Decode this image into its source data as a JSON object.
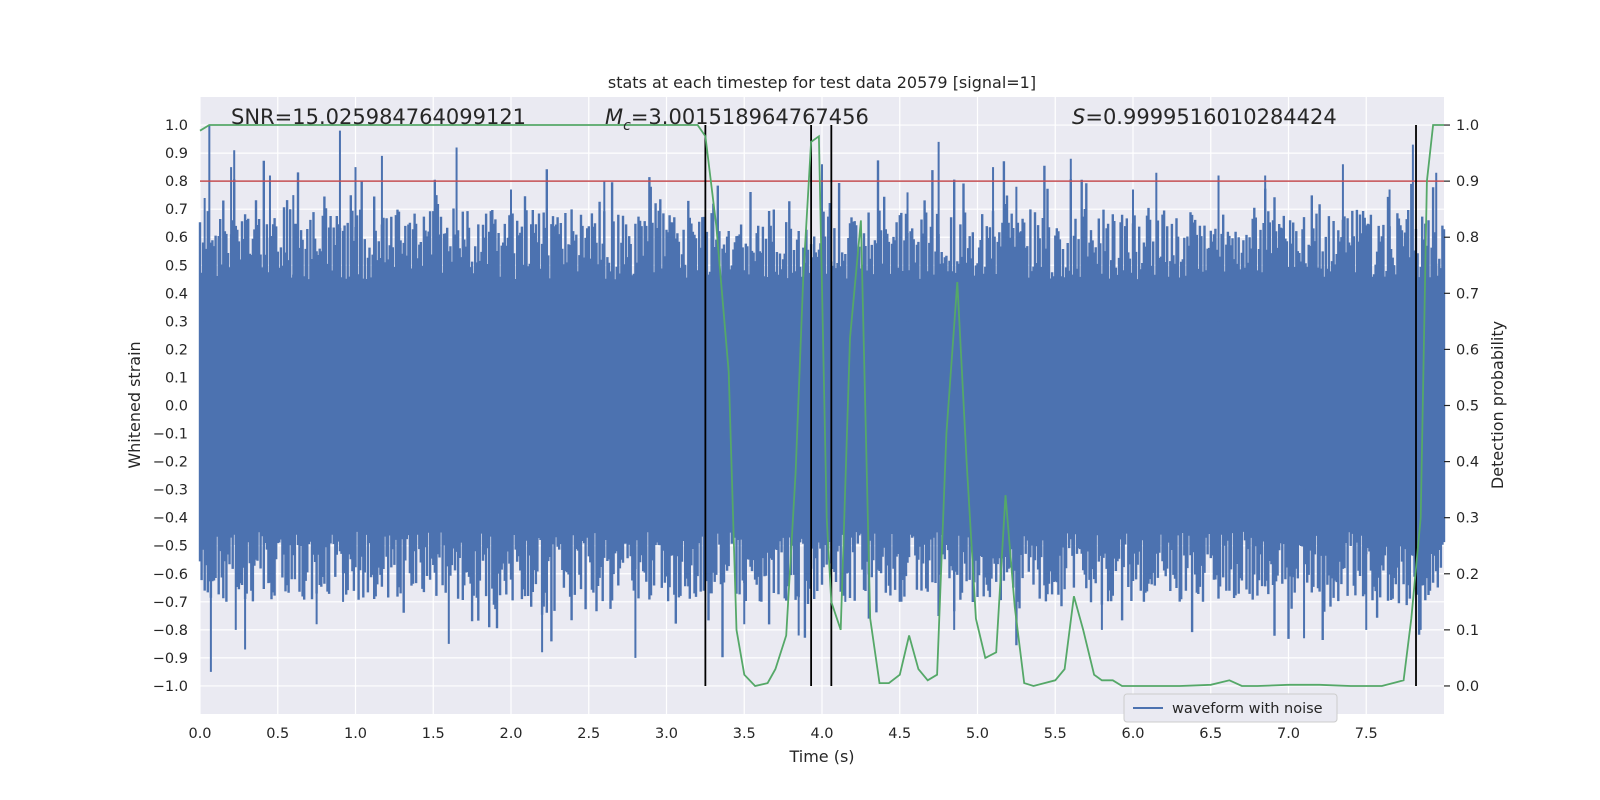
{
  "chart_data": {
    "type": "line",
    "title": "stats at each timestep for test data 20579 [signal=1]",
    "xlabel": "Time (s)",
    "ylabel": "Whitened strain",
    "y2label": "Detection probability",
    "xlim": [
      0.0,
      8.0
    ],
    "ylim": [
      -1.1,
      1.1
    ],
    "y2lim": [
      -0.05,
      1.05
    ],
    "x_ticks": [
      0.0,
      0.5,
      1.0,
      1.5,
      2.0,
      2.5,
      3.0,
      3.5,
      4.0,
      4.5,
      5.0,
      5.5,
      6.0,
      6.5,
      7.0,
      7.5
    ],
    "x_tick_labels": [
      "0.0",
      "0.5",
      "1.0",
      "1.5",
      "2.0",
      "2.5",
      "3.0",
      "3.5",
      "4.0",
      "4.5",
      "5.0",
      "5.5",
      "6.0",
      "6.5",
      "7.0",
      "7.5"
    ],
    "y_ticks": [
      1.0,
      0.9,
      0.8,
      0.7,
      0.6,
      0.5,
      0.4,
      0.3,
      0.2,
      0.1,
      0.0,
      -0.1,
      -0.2,
      -0.3,
      -0.4,
      -0.5,
      -0.6,
      -0.7,
      -0.8,
      -0.9,
      -1.0
    ],
    "y_tick_labels": [
      "1.0",
      "0.9",
      "0.8",
      "0.7",
      "0.6",
      "0.5",
      "0.4",
      "0.3",
      "0.2",
      "0.1",
      "0.0",
      "−0.1",
      "−0.2",
      "−0.3",
      "−0.4",
      "−0.5",
      "−0.6",
      "−0.7",
      "−0.8",
      "−0.9",
      "−1.0"
    ],
    "y2_ticks": [
      1.0,
      0.9,
      0.8,
      0.7,
      0.6,
      0.5,
      0.4,
      0.3,
      0.2,
      0.1,
      0.0
    ],
    "y2_tick_labels": [
      "1.0",
      "0.9",
      "0.8",
      "0.7",
      "0.6",
      "0.5",
      "0.4",
      "0.3",
      "0.2",
      "0.1",
      "0.0"
    ],
    "grid": true,
    "legend": {
      "label": "waveform with noise",
      "placement": "lower-right"
    },
    "annotations": {
      "snr": "SNR=15.025984764099121",
      "mc_symbol": "M",
      "mc_subscript": "c",
      "mc_value": "=3.001518964767456",
      "s_symbol": "S",
      "s_value": "=0.9999516010284424"
    },
    "threshold": {
      "value": 0.8,
      "axis": "left",
      "color": "#c44e52"
    },
    "event_lines_x": [
      3.25,
      3.93,
      4.06,
      7.82
    ],
    "waveform": {
      "name": "waveform with noise",
      "color": "#4c72b0",
      "envelope_samples_per_second": 100,
      "typical_amplitude": 0.45,
      "peaks": [
        [
          0.03,
          0.74
        ],
        [
          0.06,
          1.0
        ],
        [
          0.07,
          -0.95
        ],
        [
          0.2,
          0.85
        ],
        [
          0.22,
          0.91
        ],
        [
          0.23,
          -0.8
        ],
        [
          0.29,
          -0.87
        ],
        [
          0.45,
          0.82
        ],
        [
          0.6,
          0.75
        ],
        [
          0.75,
          -0.78
        ],
        [
          0.9,
          0.98
        ],
        [
          0.92,
          -0.7
        ],
        [
          1.0,
          0.85
        ],
        [
          1.17,
          0.89
        ],
        [
          1.6,
          -0.85
        ],
        [
          1.65,
          0.92
        ],
        [
          2.0,
          0.77
        ],
        [
          2.2,
          -0.88
        ],
        [
          2.6,
          0.8
        ],
        [
          2.8,
          -0.9
        ],
        [
          2.9,
          0.78
        ],
        [
          3.3,
          0.72
        ],
        [
          3.5,
          -0.78
        ],
        [
          3.85,
          -0.82
        ],
        [
          4.0,
          0.86
        ],
        [
          4.15,
          -0.7
        ],
        [
          4.3,
          -0.76
        ],
        [
          4.55,
          0.76
        ],
        [
          4.75,
          0.94
        ],
        [
          4.85,
          -0.8
        ],
        [
          5.1,
          0.85
        ],
        [
          5.25,
          0.78
        ],
        [
          5.6,
          0.88
        ],
        [
          5.8,
          -0.8
        ],
        [
          6.0,
          0.77
        ],
        [
          6.15,
          0.83
        ],
        [
          6.55,
          0.82
        ],
        [
          6.85,
          0.82
        ],
        [
          7.1,
          -0.83
        ],
        [
          7.35,
          0.86
        ],
        [
          7.5,
          -0.8
        ],
        [
          7.65,
          0.77
        ],
        [
          7.8,
          0.93
        ],
        [
          7.85,
          -0.8
        ],
        [
          7.95,
          0.83
        ]
      ]
    },
    "detection_probability": {
      "name": "detection probability",
      "color": "#55a868",
      "axis": "right",
      "x": [
        0.0,
        0.06,
        0.2,
        0.5,
        1.0,
        1.5,
        2.0,
        2.5,
        3.0,
        3.1,
        3.2,
        3.25,
        3.32,
        3.4,
        3.45,
        3.5,
        3.57,
        3.65,
        3.7,
        3.77,
        3.83,
        3.88,
        3.93,
        3.98,
        4.03,
        4.06,
        4.12,
        4.18,
        4.25,
        4.31,
        4.37,
        4.43,
        4.5,
        4.56,
        4.62,
        4.68,
        4.74,
        4.8,
        4.87,
        4.93,
        4.99,
        5.05,
        5.12,
        5.18,
        5.24,
        5.3,
        5.36,
        5.43,
        5.5,
        5.56,
        5.62,
        5.68,
        5.75,
        5.8,
        5.87,
        5.93,
        6.0,
        6.1,
        6.3,
        6.5,
        6.62,
        6.7,
        6.8,
        7.0,
        7.2,
        7.4,
        7.6,
        7.74,
        7.79,
        7.85,
        7.89,
        7.93,
        8.0
      ],
      "y": [
        0.99,
        1.0,
        1.0,
        1.0,
        1.0,
        1.0,
        1.0,
        1.0,
        1.0,
        1.0,
        1.0,
        0.98,
        0.82,
        0.56,
        0.1,
        0.02,
        0.0,
        0.005,
        0.03,
        0.09,
        0.38,
        0.73,
        0.97,
        0.98,
        0.3,
        0.15,
        0.1,
        0.62,
        0.83,
        0.12,
        0.005,
        0.005,
        0.02,
        0.09,
        0.03,
        0.01,
        0.02,
        0.45,
        0.72,
        0.4,
        0.12,
        0.05,
        0.06,
        0.34,
        0.14,
        0.005,
        0.0,
        0.005,
        0.01,
        0.03,
        0.16,
        0.1,
        0.02,
        0.01,
        0.01,
        0.0,
        0.0,
        0.0,
        0.0,
        0.002,
        0.01,
        0.0,
        0.0,
        0.002,
        0.002,
        0.0,
        0.0,
        0.01,
        0.12,
        0.3,
        0.9,
        1.0,
        1.0
      ]
    }
  }
}
